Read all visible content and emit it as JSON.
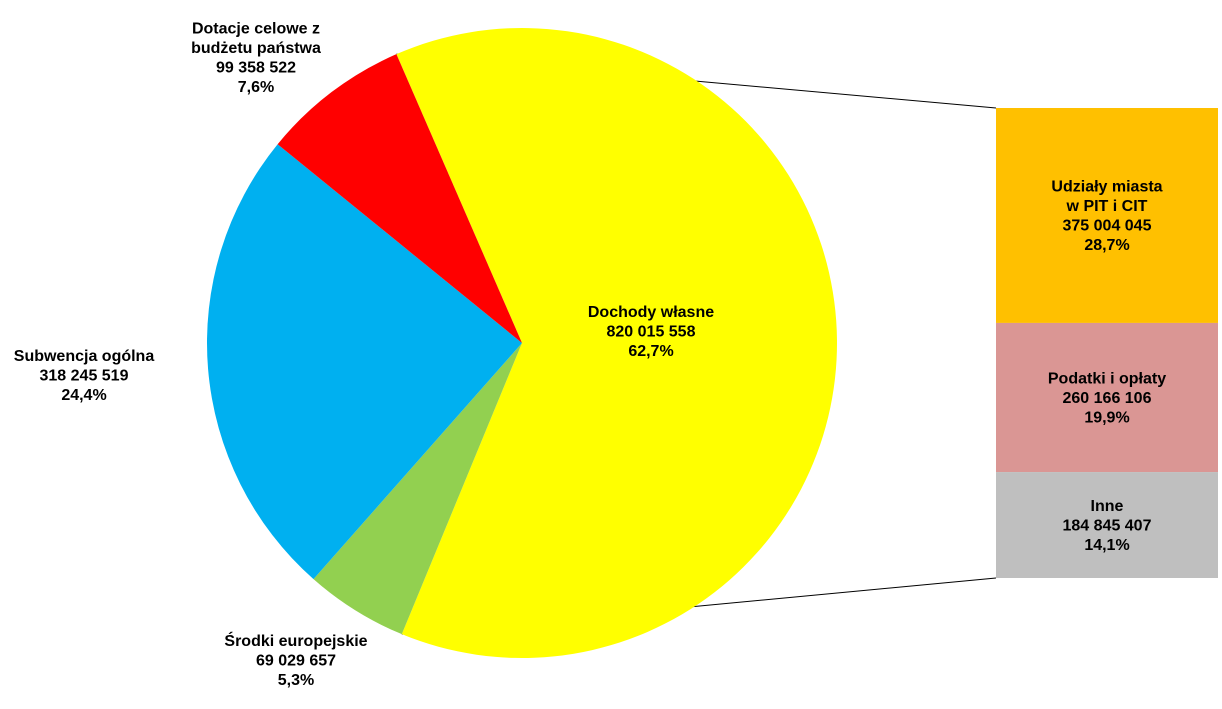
{
  "chart_data": {
    "type": "pie",
    "title": "",
    "pie": {
      "slices": [
        {
          "name": "Dochody własne",
          "value": 820015558,
          "value_label": "820 015 558",
          "percent": "62,7%",
          "color": "#FFFF00",
          "exploded": true
        },
        {
          "name": "Środki europejskie",
          "value": 69029657,
          "value_label": "69 029 657",
          "percent": "5,3%",
          "color": "#92D050"
        },
        {
          "name": "Subwencja ogólna",
          "value": 318245519,
          "value_label": "318 245 519",
          "percent": "24,4%",
          "color": "#00B0F0"
        },
        {
          "name": "Dotacje celowe z budżetu państwa",
          "name_lines": [
            "Dotacje celowe z",
            "budżetu państwa"
          ],
          "value": 99358522,
          "value_label": "99 358 522",
          "percent": "7,6%",
          "color": "#FF0000"
        }
      ]
    },
    "breakdown_bar": {
      "of_slice": "Dochody własne",
      "segments": [
        {
          "name": "Udziały miasta w PIT i CIT",
          "name_lines": [
            "Udziały miasta",
            "w PIT i CIT"
          ],
          "value": 375004045,
          "value_label": "375 004 045",
          "percent": "28,7%",
          "color": "#FFC000"
        },
        {
          "name": "Podatki i opłaty",
          "name_lines": [
            "Podatki i opłaty"
          ],
          "value": 260166106,
          "value_label": "260 166 106",
          "percent": "19,9%",
          "color": "#DA9694"
        },
        {
          "name": "Inne",
          "name_lines": [
            "Inne"
          ],
          "value": 184845407,
          "value_label": "184 845 407",
          "percent": "14,1%",
          "color": "#BFBFBF"
        }
      ]
    }
  }
}
